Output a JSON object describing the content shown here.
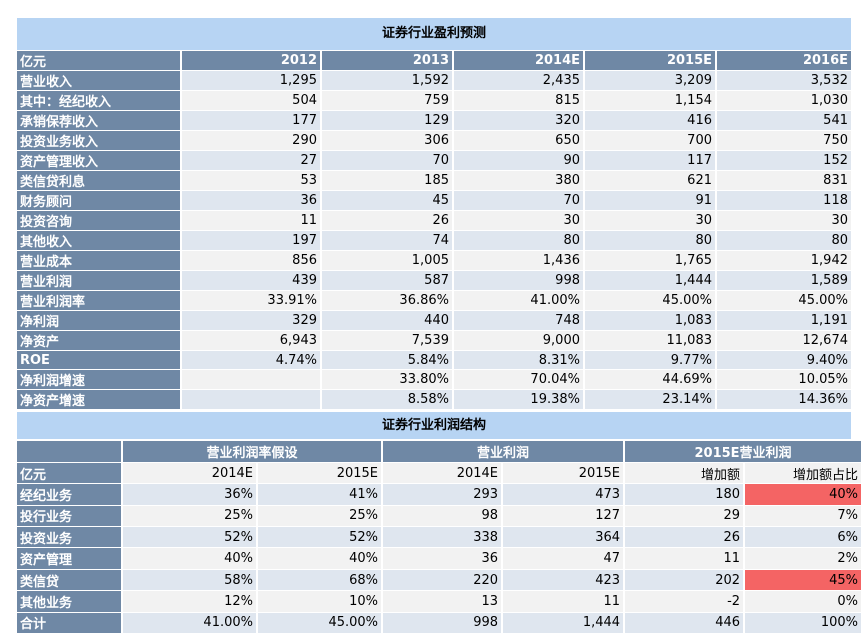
{
  "table1": {
    "title": "证券行业盈利预测",
    "header": [
      "亿元",
      "2012",
      "2013",
      "2014E",
      "2015E",
      "2016E"
    ],
    "rows": [
      [
        "营业收入",
        "1,295",
        "1,592",
        "2,435",
        "3,209",
        "3,532"
      ],
      [
        "其中：经纪收入",
        "504",
        "759",
        "815",
        "1,154",
        "1,030"
      ],
      [
        "承销保荐收入",
        "177",
        "129",
        "320",
        "416",
        "541"
      ],
      [
        "投资业务收入",
        "290",
        "306",
        "650",
        "700",
        "750"
      ],
      [
        "资产管理收入",
        "27",
        "70",
        "90",
        "117",
        "152"
      ],
      [
        "类信贷利息",
        "53",
        "185",
        "380",
        "621",
        "831"
      ],
      [
        "财务顾问",
        "36",
        "45",
        "70",
        "91",
        "118"
      ],
      [
        "投资咨询",
        "11",
        "26",
        "30",
        "30",
        "30"
      ],
      [
        "其他收入",
        "197",
        "74",
        "80",
        "80",
        "80"
      ],
      [
        "营业成本",
        "856",
        "1,005",
        "1,436",
        "1,765",
        "1,942"
      ],
      [
        "营业利润",
        "439",
        "587",
        "998",
        "1,444",
        "1,589"
      ],
      [
        "营业利润率",
        "33.91%",
        "36.86%",
        "41.00%",
        "45.00%",
        "45.00%"
      ],
      [
        "净利润",
        "329",
        "440",
        "748",
        "1,083",
        "1,191"
      ],
      [
        "净资产",
        "6,943",
        "7,539",
        "9,000",
        "11,083",
        "12,674"
      ],
      [
        "ROE",
        "4.74%",
        "5.84%",
        "8.31%",
        "9.77%",
        "9.40%"
      ],
      [
        "净利润增速",
        "",
        "33.80%",
        "70.04%",
        "44.69%",
        "10.05%"
      ],
      [
        "净资产增速",
        "",
        "8.58%",
        "19.38%",
        "23.14%",
        "14.36%"
      ]
    ]
  },
  "table2": {
    "title": "证券行业利润结构",
    "groups": [
      "营业利润率假设",
      "营业利润",
      "2015E营业利润"
    ],
    "subheader": [
      "亿元",
      "2014E",
      "2015E",
      "2014E",
      "2015E",
      "增加额",
      "增加额占比"
    ],
    "rows": [
      [
        "经纪业务",
        "36%",
        "41%",
        "293",
        "473",
        "180",
        "40%"
      ],
      [
        "投行业务",
        "25%",
        "25%",
        "98",
        "127",
        "29",
        "7%"
      ],
      [
        "投资业务",
        "52%",
        "52%",
        "338",
        "364",
        "26",
        "6%"
      ],
      [
        "资产管理",
        "40%",
        "40%",
        "36",
        "47",
        "11",
        "2%"
      ],
      [
        "类信贷",
        "58%",
        "68%",
        "220",
        "423",
        "202",
        "45%"
      ],
      [
        "其他业务",
        "12%",
        "10%",
        "13",
        "11",
        "-2",
        "0%"
      ],
      [
        "合计",
        "41.00%",
        "45.00%",
        "998",
        "1,444",
        "446",
        "100%"
      ]
    ],
    "highlight_color": "#f46464",
    "highlighted_rows": [
      "经纪业务",
      "类信贷"
    ]
  }
}
